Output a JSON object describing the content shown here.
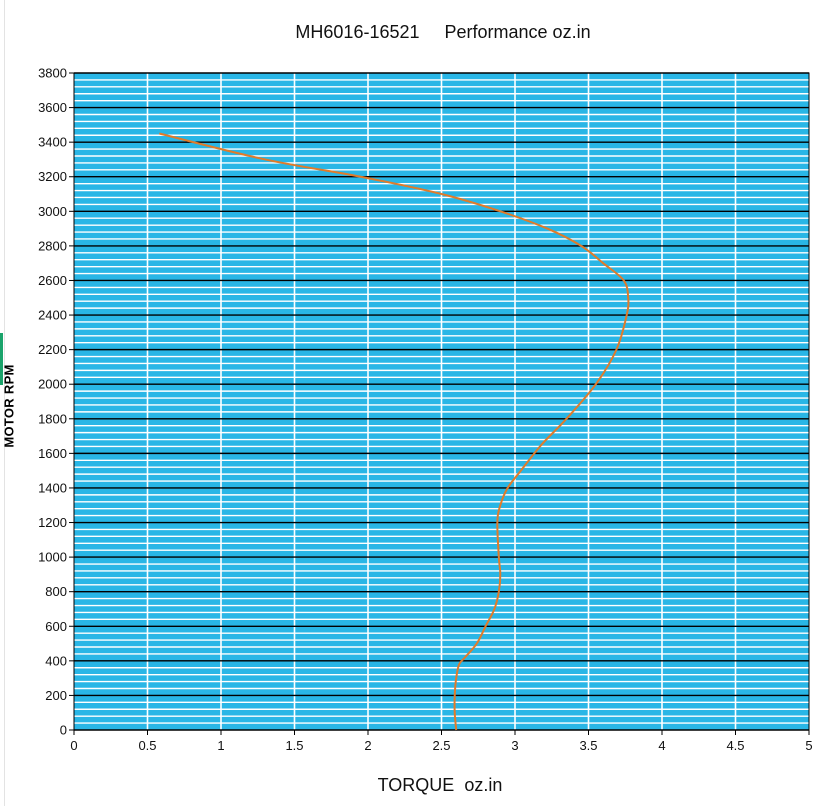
{
  "chart_data": {
    "type": "line",
    "title": "MH6016-16521     Performance oz.in",
    "xlabel": "TORQUE  oz.in",
    "ylabel": "MOTOR RPM",
    "xlim": [
      0,
      5
    ],
    "ylim": [
      0,
      3800
    ],
    "x_ticks": [
      "0",
      "0.5",
      "1",
      "1.5",
      "2",
      "2.5",
      "3",
      "3.5",
      "4",
      "4.5",
      "5"
    ],
    "y_ticks": [
      "0",
      "200",
      "400",
      "600",
      "800",
      "1000",
      "1200",
      "1400",
      "1600",
      "1800",
      "2000",
      "2200",
      "2400",
      "2600",
      "2800",
      "3000",
      "3200",
      "3400",
      "3600",
      "3800"
    ],
    "grid": true,
    "colors": {
      "plot_background": "#29b6e6",
      "minor_gridline": "#ffffff",
      "major_gridline": "#000000",
      "vertical_gridline": "#ffffff",
      "series_line": "#e07b2a"
    },
    "series": [
      {
        "x": [
          2.6,
          2.59,
          2.59,
          2.6,
          2.62,
          2.66,
          2.74,
          2.8,
          2.86,
          2.89,
          2.9,
          2.89,
          2.88,
          2.9,
          2.95,
          3.04,
          3.18,
          3.35,
          3.55,
          3.69,
          3.76,
          3.77,
          3.74,
          3.6,
          3.45,
          3.22,
          2.9,
          2.5,
          1.95,
          1.3,
          0.58
        ],
        "y": [
          0,
          100,
          200,
          300,
          380,
          420,
          500,
          600,
          700,
          800,
          900,
          1000,
          1200,
          1300,
          1400,
          1500,
          1650,
          1800,
          2000,
          2200,
          2400,
          2500,
          2600,
          2700,
          2800,
          2900,
          3000,
          3100,
          3200,
          3300,
          3450
        ]
      }
    ]
  }
}
